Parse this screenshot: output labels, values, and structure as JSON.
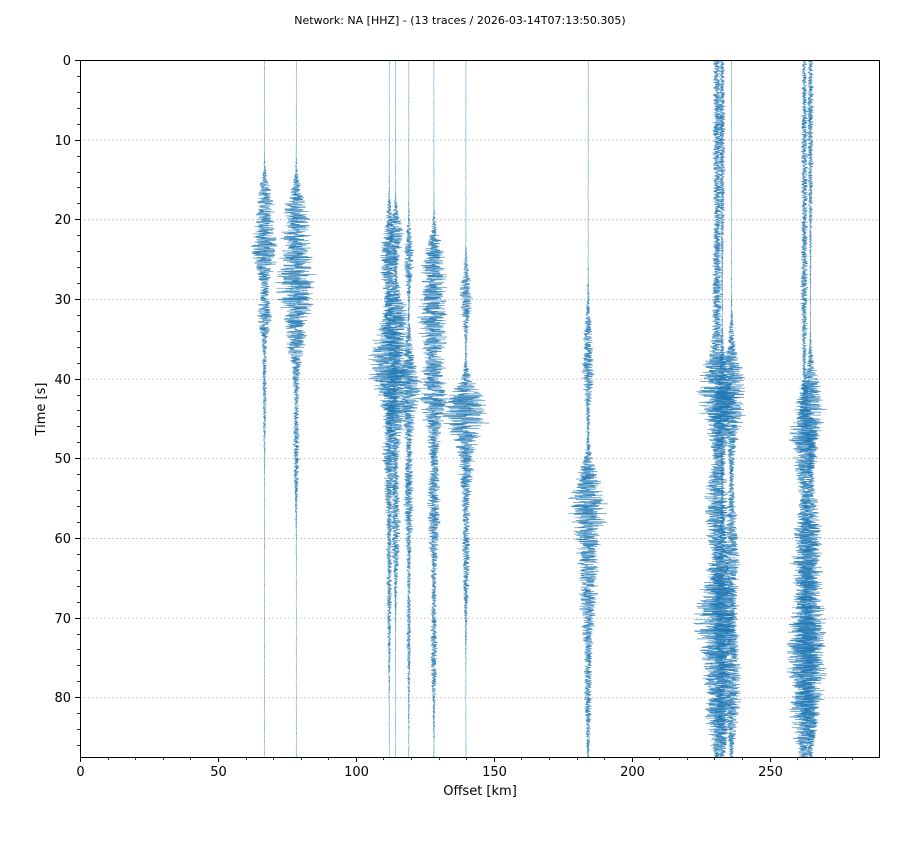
{
  "chart_data": {
    "type": "seismic-record-section",
    "title": "Network: NA [HHZ] - (13 traces / 2026-03-14T07:13:50.305)",
    "xlabel": "Offset [km]",
    "ylabel": "Time [s]",
    "xlim": [
      0,
      290
    ],
    "ylim": [
      87.5,
      0
    ],
    "y_inverted": true,
    "x_ticks": [
      "0",
      "50",
      "100",
      "150",
      "200",
      "250"
    ],
    "x_tick_values": [
      0,
      50,
      100,
      150,
      200,
      250
    ],
    "y_ticks": [
      "0",
      "10",
      "20",
      "30",
      "40",
      "50",
      "60",
      "70",
      "80"
    ],
    "y_tick_values": [
      0,
      10,
      20,
      30,
      40,
      50,
      60,
      70,
      80
    ],
    "grid": "horizontal dotted",
    "trace_color": "#1f77b4",
    "traces": [
      {
        "offset": 66.9,
        "length": 87.5,
        "packets": [
          {
            "t": 18,
            "a": 3.5,
            "w": 3
          },
          {
            "t": 24,
            "a": 5.5,
            "w": 3.5
          },
          {
            "t": 32,
            "a": 2.5,
            "w": 3
          },
          {
            "t": 40,
            "a": 0.8,
            "w": 8
          }
        ]
      },
      {
        "offset": 78.4,
        "length": 87.5,
        "packets": [
          {
            "t": 20,
            "a": 5,
            "w": 4
          },
          {
            "t": 28,
            "a": 8,
            "w": 5
          },
          {
            "t": 36,
            "a": 3,
            "w": 4
          },
          {
            "t": 48,
            "a": 1.2,
            "w": 8
          }
        ]
      },
      {
        "offset": 112.1,
        "length": 87.5,
        "packets": [
          {
            "t": 25,
            "a": 4,
            "w": 5
          },
          {
            "t": 38,
            "a": 9,
            "w": 5
          },
          {
            "t": 50,
            "a": 2.5,
            "w": 6
          },
          {
            "t": 65,
            "a": 1,
            "w": 10
          }
        ]
      },
      {
        "offset": 114.4,
        "length": 87.5,
        "packets": [
          {
            "t": 22,
            "a": 3,
            "w": 3
          },
          {
            "t": 33,
            "a": 6,
            "w": 4
          },
          {
            "t": 43,
            "a": 5,
            "w": 5
          },
          {
            "t": 58,
            "a": 1.8,
            "w": 8
          }
        ]
      },
      {
        "offset": 119.2,
        "length": 87.5,
        "packets": [
          {
            "t": 25,
            "a": 2,
            "w": 4
          },
          {
            "t": 41,
            "a": 5,
            "w": 5
          },
          {
            "t": 55,
            "a": 2,
            "w": 7
          },
          {
            "t": 72,
            "a": 0.8,
            "w": 8
          }
        ]
      },
      {
        "offset": 128.3,
        "length": 87.5,
        "packets": [
          {
            "t": 26,
            "a": 5,
            "w": 4
          },
          {
            "t": 33,
            "a": 6,
            "w": 4
          },
          {
            "t": 42,
            "a": 6,
            "w": 5
          },
          {
            "t": 56,
            "a": 2.5,
            "w": 8
          },
          {
            "t": 74,
            "a": 1.2,
            "w": 8
          }
        ]
      },
      {
        "offset": 139.9,
        "length": 87.5,
        "packets": [
          {
            "t": 30,
            "a": 2.5,
            "w": 4
          },
          {
            "t": 44,
            "a": 9,
            "w": 3.5
          },
          {
            "t": 50,
            "a": 3,
            "w": 5
          },
          {
            "t": 62,
            "a": 1.5,
            "w": 8
          }
        ]
      },
      {
        "offset": 184.2,
        "length": 87.5,
        "packets": [
          {
            "t": 38,
            "a": 2.5,
            "w": 6
          },
          {
            "t": 56,
            "a": 8,
            "w": 5
          },
          {
            "t": 66,
            "a": 3.5,
            "w": 6
          },
          {
            "t": 78,
            "a": 1.5,
            "w": 8
          }
        ]
      },
      {
        "offset": 231.0,
        "length": 87.5,
        "packets": [
          {
            "t": 8,
            "a": 1.8,
            "w": 14
          },
          {
            "t": 30,
            "a": 1.8,
            "w": 10
          },
          {
            "t": 42,
            "a": 8,
            "w": 5
          },
          {
            "t": 56,
            "a": 5,
            "w": 6
          },
          {
            "t": 70,
            "a": 9,
            "w": 6
          },
          {
            "t": 81,
            "a": 5,
            "w": 6
          }
        ]
      },
      {
        "offset": 232.8,
        "length": 87.5,
        "packets": [
          {
            "t": 10,
            "a": 1.2,
            "w": 14
          },
          {
            "t": 44,
            "a": 4,
            "w": 6
          },
          {
            "t": 68,
            "a": 5,
            "w": 8
          },
          {
            "t": 82,
            "a": 3,
            "w": 6
          }
        ]
      },
      {
        "offset": 236.2,
        "length": 87.5,
        "packets": [
          {
            "t": 42,
            "a": 6,
            "w": 6
          },
          {
            "t": 62,
            "a": 3,
            "w": 8
          },
          {
            "t": 78,
            "a": 4,
            "w": 7
          }
        ]
      },
      {
        "offset": 262.6,
        "length": 87.5,
        "packets": [
          {
            "t": 10,
            "a": 1.2,
            "w": 14
          },
          {
            "t": 30,
            "a": 1.2,
            "w": 10
          },
          {
            "t": 48,
            "a": 6,
            "w": 5
          },
          {
            "t": 62,
            "a": 5,
            "w": 6
          },
          {
            "t": 74,
            "a": 7,
            "w": 6
          },
          {
            "t": 83,
            "a": 5,
            "w": 5
          }
        ]
      },
      {
        "offset": 264.8,
        "length": 87.5,
        "packets": [
          {
            "t": 8,
            "a": 1.2,
            "w": 14
          },
          {
            "t": 44,
            "a": 6,
            "w": 5
          },
          {
            "t": 60,
            "a": 4,
            "w": 7
          },
          {
            "t": 72,
            "a": 6,
            "w": 7
          },
          {
            "t": 80,
            "a": 4,
            "w": 6
          }
        ]
      }
    ]
  }
}
